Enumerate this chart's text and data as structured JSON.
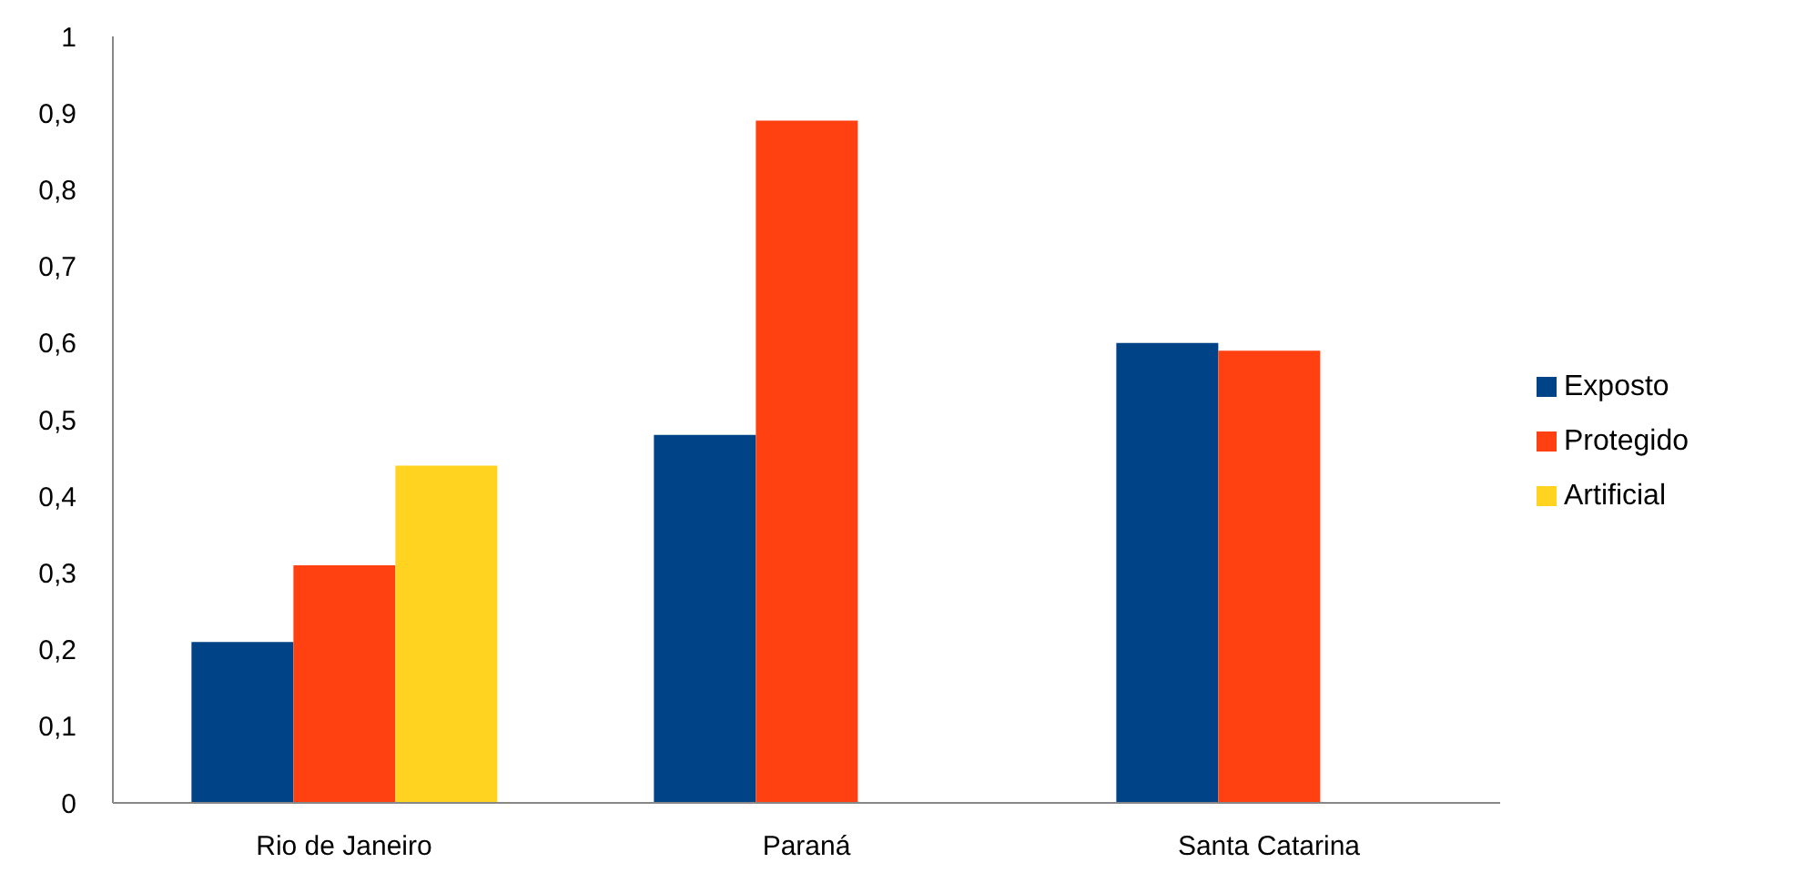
{
  "chart_data": {
    "type": "bar",
    "categories": [
      "Rio de Janeiro",
      "Paraná",
      "Santa Catarina"
    ],
    "series": [
      {
        "name": "Exposto",
        "color": "#004386",
        "values": [
          0.21,
          0.48,
          0.6
        ]
      },
      {
        "name": "Protegido",
        "color": "#ff4112",
        "values": [
          0.31,
          0.89,
          0.59
        ]
      },
      {
        "name": "Artificial",
        "color": "#ffd320",
        "values": [
          0.44,
          null,
          null
        ]
      }
    ],
    "ylim": [
      0,
      1
    ],
    "yticks": [
      0,
      {
        "value": 0.1,
        "label": "0,1"
      },
      {
        "value": 0.2,
        "label": "0,2"
      },
      {
        "value": 0.3,
        "label": "0,3"
      },
      {
        "value": 0.4,
        "label": "0,4"
      },
      {
        "value": 0.5,
        "label": "0,5"
      },
      {
        "value": 0.6,
        "label": "0,6"
      },
      {
        "value": 0.7,
        "label": "0,7"
      },
      {
        "value": 0.8,
        "label": "0,8"
      },
      {
        "value": 0.9,
        "label": "0,9"
      },
      1
    ],
    "grid": false,
    "legend": "right"
  }
}
